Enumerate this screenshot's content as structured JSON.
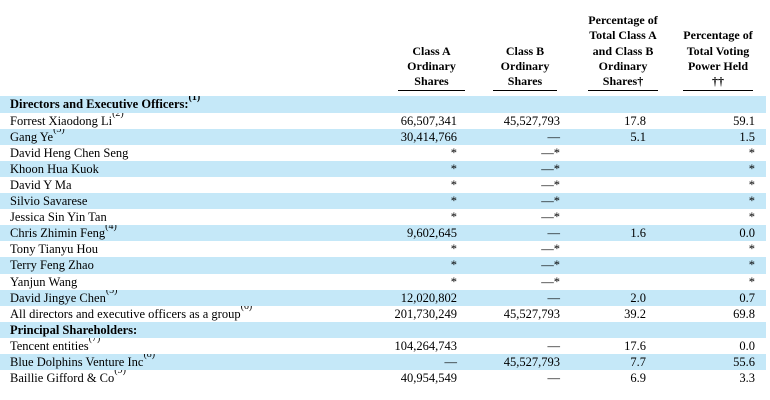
{
  "colors": {
    "stripe": "#c5e8f8",
    "text": "#000000",
    "rule": "#000000",
    "background": "#ffffff"
  },
  "table": {
    "columns": [
      {
        "key": "class_a",
        "label": "Class A\nOrdinary\nShares"
      },
      {
        "key": "class_b",
        "label": "Class B\nOrdinary\nShares"
      },
      {
        "key": "pct_total",
        "label": "Percentage of\nTotal Class A\nand Class B\nOrdinary\nShares†"
      },
      {
        "key": "voting",
        "label": "Percentage of\nTotal Voting\nPower Held\n††"
      }
    ],
    "rows": [
      {
        "name": "Directors and Executive Officers:",
        "sup": "(1)",
        "bold": true,
        "class_a": "",
        "class_b": "",
        "pct_total": "",
        "voting": ""
      },
      {
        "name": "Forrest Xiaodong Li",
        "sup": "(2)",
        "bold": false,
        "class_a": "66,507,341",
        "class_b": "45,527,793",
        "pct_total": "17.8",
        "voting": "59.1"
      },
      {
        "name": "Gang Ye",
        "sup": "(3)",
        "bold": false,
        "class_a": "30,414,766",
        "class_b": "—",
        "pct_total": "5.1",
        "voting": "1.5"
      },
      {
        "name": "David Heng Chen Seng",
        "sup": "",
        "bold": false,
        "class_a": "*",
        "class_b": "—*",
        "pct_total": "",
        "voting": "*"
      },
      {
        "name": "Khoon Hua Kuok",
        "sup": "",
        "bold": false,
        "class_a": "*",
        "class_b": "—*",
        "pct_total": "",
        "voting": "*"
      },
      {
        "name": "David Y Ma",
        "sup": "",
        "bold": false,
        "class_a": "*",
        "class_b": "—*",
        "pct_total": "",
        "voting": "*"
      },
      {
        "name": "Silvio Savarese",
        "sup": "",
        "bold": false,
        "class_a": "*",
        "class_b": "—*",
        "pct_total": "",
        "voting": "*"
      },
      {
        "name": "Jessica Sin Yin Tan",
        "sup": "",
        "bold": false,
        "class_a": "*",
        "class_b": "—*",
        "pct_total": "",
        "voting": "*"
      },
      {
        "name": "Chris Zhimin Feng",
        "sup": "(4)",
        "bold": false,
        "class_a": "9,602,645",
        "class_b": "—",
        "pct_total": "1.6",
        "voting": "0.0"
      },
      {
        "name": "Tony Tianyu Hou",
        "sup": "",
        "bold": false,
        "class_a": "*",
        "class_b": "—*",
        "pct_total": "",
        "voting": "*"
      },
      {
        "name": "Terry Feng Zhao",
        "sup": "",
        "bold": false,
        "class_a": "*",
        "class_b": "—*",
        "pct_total": "",
        "voting": "*"
      },
      {
        "name": "Yanjun Wang",
        "sup": "",
        "bold": false,
        "class_a": "*",
        "class_b": "—*",
        "pct_total": "",
        "voting": "*"
      },
      {
        "name": "David Jingye Chen",
        "sup": "(5)",
        "bold": false,
        "class_a": "12,020,802",
        "class_b": "—",
        "pct_total": "2.0",
        "voting": "0.7"
      },
      {
        "name": "All directors and executive officers as a group",
        "sup": "(6)",
        "bold": false,
        "class_a": "201,730,249",
        "class_b": "45,527,793",
        "pct_total": "39.2",
        "voting": "69.8"
      },
      {
        "name": "Principal Shareholders:",
        "sup": "",
        "bold": true,
        "class_a": "",
        "class_b": "",
        "pct_total": "",
        "voting": ""
      },
      {
        "name": "Tencent entities",
        "sup": "(7)",
        "bold": false,
        "class_a": "104,264,743",
        "class_b": "—",
        "pct_total": "17.6",
        "voting": "0.0"
      },
      {
        "name": "Blue Dolphins Venture Inc",
        "sup": "(8)",
        "bold": false,
        "class_a": "—",
        "class_b": "45,527,793",
        "pct_total": "7.7",
        "voting": "55.6"
      },
      {
        "name": "Baillie Gifford & Co",
        "sup": "(9)",
        "bold": false,
        "class_a": "40,954,549",
        "class_b": "—",
        "pct_total": "6.9",
        "voting": "3.3"
      }
    ]
  }
}
